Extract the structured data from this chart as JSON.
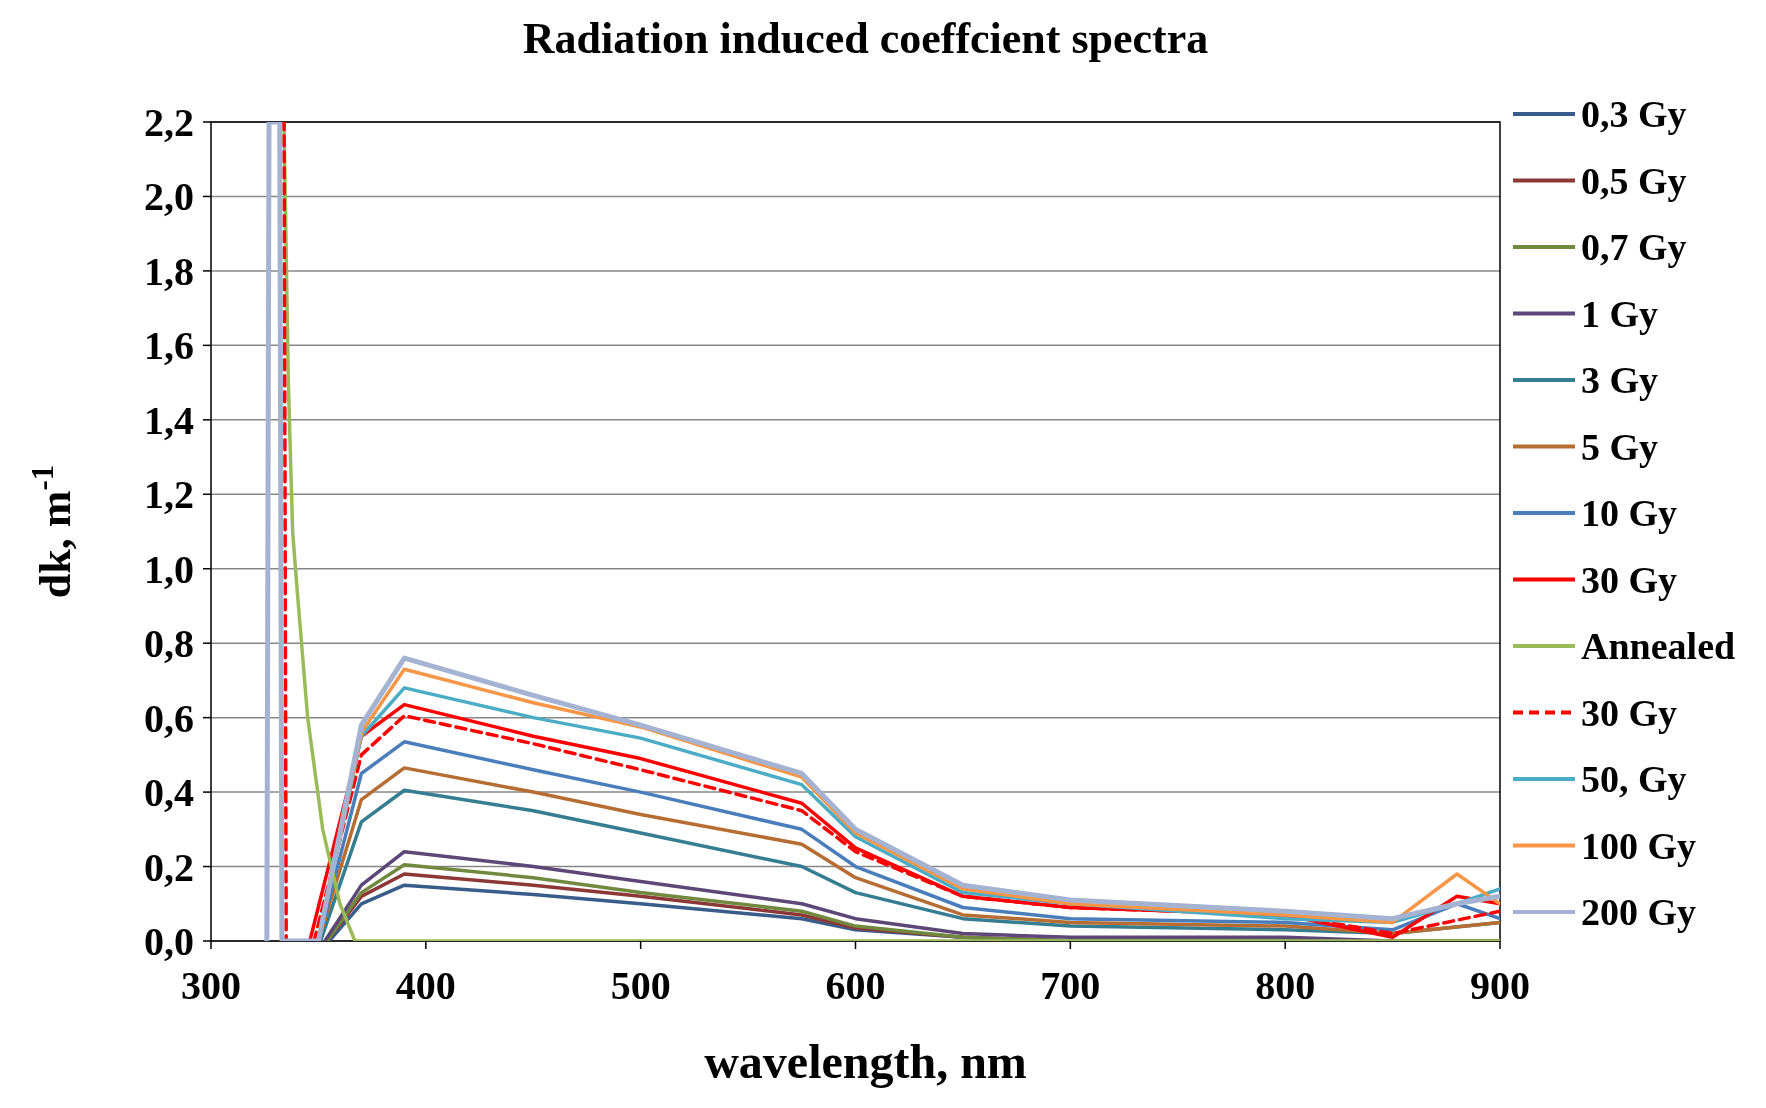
{
  "chart_data": {
    "type": "line",
    "title": "Radiation induced coeffcient spectra",
    "xlabel": "wavelength, nm",
    "ylabel": "dk, m$^{-1}$",
    "xlim": [
      300,
      900
    ],
    "xticks": [
      300,
      400,
      500,
      600,
      700,
      800,
      900
    ],
    "ylim": [
      0,
      2.2
    ],
    "yticks": [
      {
        "value": 0,
        "label": "0,0"
      },
      {
        "value": 0.2,
        "label": "0,2"
      },
      {
        "value": 0.4,
        "label": "0,4"
      },
      {
        "value": 0.6,
        "label": "0,6"
      },
      {
        "value": 0.8,
        "label": "0,8"
      },
      {
        "value": 1,
        "label": "1,0"
      },
      {
        "value": 1.2,
        "label": "1,2"
      },
      {
        "value": 1.4,
        "label": "1,4"
      },
      {
        "value": 1.6,
        "label": "1,6"
      },
      {
        "value": 1.8,
        "label": "1,8"
      },
      {
        "value": 2,
        "label": "2,0"
      },
      {
        "value": 2.2,
        "label": "2,2"
      }
    ],
    "grid": "y",
    "legend": "right",
    "line_style": "solid",
    "marker": "none",
    "series": [
      {
        "name": "0,3 Gy",
        "color": "#385d8a",
        "x": [
          355,
          370,
          390,
          450,
          500,
          575,
          600,
          650,
          700,
          800,
          850,
          900
        ],
        "values": [
          0,
          0.1,
          0.15,
          0.125,
          0.1,
          0.06,
          0.03,
          0.01,
          0,
          0,
          0,
          0
        ]
      },
      {
        "name": "0,5 Gy",
        "color": "#8c3836",
        "x": [
          354,
          370,
          390,
          450,
          500,
          575,
          600,
          650,
          700
        ],
        "values": [
          0,
          0.12,
          0.18,
          0.15,
          0.12,
          0.07,
          0.035,
          0.01,
          0
        ]
      },
      {
        "name": "0,7 Gy",
        "color": "#71893f",
        "x": [
          354,
          370,
          390,
          450,
          500,
          575,
          600,
          650,
          700,
          800,
          850,
          900
        ],
        "values": [
          0,
          0.13,
          0.205,
          0.17,
          0.13,
          0.08,
          0.04,
          0.01,
          0,
          0,
          0,
          0
        ]
      },
      {
        "name": "1 Gy",
        "color": "#5c4776",
        "x": [
          353,
          370,
          390,
          450,
          500,
          575,
          600,
          650,
          700,
          800,
          850,
          900
        ],
        "values": [
          0,
          0.15,
          0.24,
          0.2,
          0.16,
          0.1,
          0.06,
          0.02,
          0.01,
          0.01,
          0,
          0
        ]
      },
      {
        "name": "3 Gy",
        "color": "#357d91",
        "x": [
          351,
          370,
          390,
          450,
          500,
          575,
          600,
          650,
          700,
          800,
          850,
          900
        ],
        "values": [
          0,
          0.32,
          0.405,
          0.35,
          0.29,
          0.2,
          0.13,
          0.06,
          0.04,
          0.03,
          0.02,
          0.05
        ]
      },
      {
        "name": "5 Gy",
        "color": "#b66d31",
        "x": [
          350,
          370,
          390,
          450,
          500,
          575,
          600,
          650,
          700,
          800,
          850,
          900
        ],
        "values": [
          0,
          0.38,
          0.465,
          0.4,
          0.34,
          0.26,
          0.17,
          0.07,
          0.05,
          0.04,
          0.02,
          0.05
        ]
      },
      {
        "name": "10 Gy",
        "color": "#4a7ebb",
        "x": [
          350,
          370,
          390,
          450,
          500,
          575,
          600,
          650,
          700,
          800,
          850,
          880,
          900
        ],
        "values": [
          0,
          0.45,
          0.535,
          0.46,
          0.4,
          0.3,
          0.2,
          0.09,
          0.06,
          0.05,
          0.03,
          0.1,
          0.06
        ]
      },
      {
        "name": "30 Gy",
        "color": "#ff0000",
        "x": [
          346,
          370,
          390,
          450,
          500,
          575,
          600,
          650,
          700,
          800,
          850,
          880,
          900
        ],
        "values": [
          0,
          0.55,
          0.635,
          0.55,
          0.49,
          0.37,
          0.25,
          0.12,
          0.09,
          0.07,
          0.01,
          0.12,
          0.1
        ]
      },
      {
        "name": "Annealed",
        "color": "#9bbb59",
        "x": [
          334,
          336,
          338,
          340,
          345,
          352,
          360,
          367,
          400,
          500,
          600,
          700,
          800,
          900
        ],
        "values": [
          2.2,
          1.5,
          1.1,
          0.95,
          0.6,
          0.3,
          0.1,
          0,
          0,
          0,
          0,
          0,
          0,
          0
        ]
      },
      {
        "name": "30 Gy",
        "color": "#ff0000",
        "line_style": "dashed",
        "x": [
          333,
          334,
          335,
          348,
          370,
          390,
          450,
          500,
          575,
          600,
          650,
          700,
          800,
          850,
          900
        ],
        "values": [
          2.2,
          2.2,
          0,
          0,
          0.5,
          0.605,
          0.53,
          0.46,
          0.35,
          0.24,
          0.12,
          0.09,
          0.07,
          0.02,
          0.08
        ]
      },
      {
        "name": "50, Gy",
        "color": "#4bacc6",
        "x": [
          350,
          370,
          390,
          450,
          500,
          575,
          600,
          650,
          700,
          800,
          850,
          880,
          900
        ],
        "values": [
          0,
          0.55,
          0.68,
          0.6,
          0.545,
          0.42,
          0.28,
          0.13,
          0.1,
          0.06,
          0.05,
          0.1,
          0.14
        ]
      },
      {
        "name": "100 Gy",
        "color": "#f79646",
        "x": [
          350,
          370,
          390,
          450,
          500,
          575,
          600,
          650,
          700,
          800,
          850,
          880,
          900
        ],
        "values": [
          0,
          0.56,
          0.73,
          0.64,
          0.575,
          0.44,
          0.29,
          0.14,
          0.1,
          0.07,
          0.05,
          0.18,
          0.1
        ]
      },
      {
        "name": "200 Gy",
        "color": "#a3b3d1",
        "x": [
          326,
          327,
          332,
          333,
          350,
          370,
          390,
          450,
          500,
          575,
          600,
          650,
          700,
          800,
          850,
          880,
          900
        ],
        "values": [
          0,
          2.2,
          2.2,
          0,
          0,
          0.58,
          0.76,
          0.66,
          0.58,
          0.45,
          0.3,
          0.15,
          0.11,
          0.08,
          0.06,
          0.1,
          0.12
        ]
      }
    ]
  }
}
